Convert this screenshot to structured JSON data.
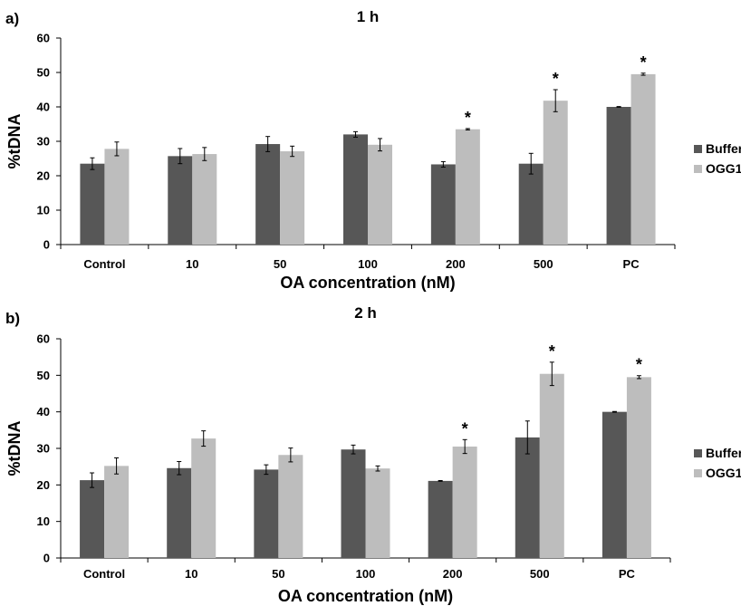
{
  "chart_data": [
    {
      "type": "bar",
      "panel_label": "a)",
      "title": "1 h",
      "xlabel": "OA concentration (nM)",
      "ylabel": "%tDNA",
      "ylim": [
        0,
        60
      ],
      "yticks": [
        0,
        10,
        20,
        30,
        40,
        50,
        60
      ],
      "categories": [
        "Control",
        "10",
        "50",
        "100",
        "200",
        "500",
        "PC"
      ],
      "series": [
        {
          "name": "Buffer",
          "color": "#575757",
          "values": [
            23.5,
            25.7,
            29.2,
            32.0,
            23.3,
            23.5,
            40.0
          ],
          "errors": [
            1.7,
            2.2,
            2.2,
            0.8,
            0.8,
            3.0,
            0.1
          ]
        },
        {
          "name": "OGG1",
          "color": "#bdbdbd",
          "values": [
            27.8,
            26.3,
            27.1,
            29.0,
            33.5,
            41.8,
            49.5
          ],
          "errors": [
            2.0,
            1.9,
            1.5,
            1.8,
            0.2,
            3.2,
            0.3
          ]
        }
      ],
      "significance": [
        "",
        "",
        "",
        "",
        "*",
        "*",
        "*"
      ],
      "legend_position": "right",
      "grid": false
    },
    {
      "type": "bar",
      "panel_label": "b)",
      "title": "2 h",
      "xlabel": "OA concentration (nM)",
      "ylabel": "%tDNA",
      "ylim": [
        0,
        60
      ],
      "yticks": [
        0,
        10,
        20,
        30,
        40,
        50,
        60
      ],
      "categories": [
        "Control",
        "10",
        "50",
        "100",
        "200",
        "500",
        "PC"
      ],
      "series": [
        {
          "name": "Buffer",
          "color": "#575757",
          "values": [
            21.3,
            24.6,
            24.2,
            29.7,
            21.1,
            33.0,
            40.0
          ],
          "errors": [
            2.0,
            1.8,
            1.3,
            1.2,
            0.1,
            4.5,
            0.1
          ]
        },
        {
          "name": "OGG1",
          "color": "#bdbdbd",
          "values": [
            25.2,
            32.7,
            28.2,
            24.5,
            30.5,
            50.4,
            49.5
          ],
          "errors": [
            2.2,
            2.1,
            1.9,
            0.7,
            1.9,
            3.2,
            0.4
          ]
        }
      ],
      "significance": [
        "",
        "",
        "",
        "",
        "*",
        "*",
        "*"
      ],
      "legend_position": "right",
      "grid": false
    }
  ]
}
